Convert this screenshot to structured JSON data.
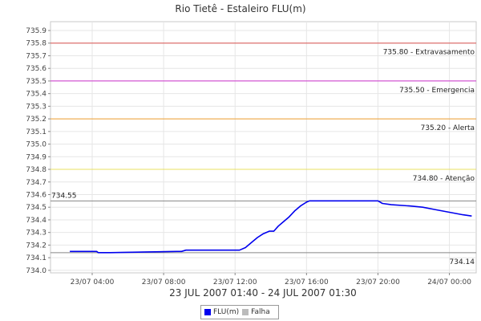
{
  "chart_data": {
    "type": "line",
    "title": "Rio Tietê - Estaleiro FLU(m)",
    "date_range": "23 JUL 2007 01:40 - 24 JUL 2007 01:30",
    "x_domain": [
      "2007-07-23 01:40",
      "2007-07-24 01:30"
    ],
    "ylim": [
      733.98,
      735.97
    ],
    "y_ticks": [
      "734.0",
      "734.1",
      "734.2",
      "734.3",
      "734.4",
      "734.5",
      "734.6",
      "734.7",
      "734.8",
      "734.9",
      "735.0",
      "735.1",
      "735.2",
      "735.3",
      "735.4",
      "735.5",
      "735.6",
      "735.7",
      "735.8",
      "735.9"
    ],
    "x_ticks": [
      {
        "t": "2007-07-23 04:00",
        "label": "23/07 04:00"
      },
      {
        "t": "2007-07-23 08:00",
        "label": "23/07 08:00"
      },
      {
        "t": "2007-07-23 12:00",
        "label": "23/07 12:00"
      },
      {
        "t": "2007-07-23 16:00",
        "label": "23/07 16:00"
      },
      {
        "t": "2007-07-23 20:00",
        "label": "23/07 20:00"
      },
      {
        "t": "2007-07-24 00:00",
        "label": "24/07 00:00"
      }
    ],
    "reference_lines": [
      {
        "value": 735.8,
        "label": "735.80 - Extravasamento",
        "color": "#d9534f"
      },
      {
        "value": 735.5,
        "label": "735.50 - Emergencia",
        "color": "#cc33cc"
      },
      {
        "value": 735.2,
        "label": "735.20 - Alerta",
        "color": "#f0a030"
      },
      {
        "value": 734.8,
        "label": "734.80 - Atenção",
        "color": "#e8e060"
      },
      {
        "value": 734.55,
        "label": "734.55",
        "color": "#888888",
        "label_side": "left"
      },
      {
        "value": 734.14,
        "label": "734.14",
        "color": "#888888",
        "label_side": "right-below"
      }
    ],
    "series": [
      {
        "name": "FLU(m)",
        "color": "#0000ee",
        "points": [
          [
            "2007-07-23 02:45",
            734.15
          ],
          [
            "2007-07-23 04:15",
            734.15
          ],
          [
            "2007-07-23 04:20",
            734.14
          ],
          [
            "2007-07-23 05:00",
            734.14
          ],
          [
            "2007-07-23 08:45",
            734.15
          ],
          [
            "2007-07-23 09:00",
            734.15
          ],
          [
            "2007-07-23 09:15",
            734.16
          ],
          [
            "2007-07-23 12:15",
            734.16
          ],
          [
            "2007-07-23 12:35",
            734.18
          ],
          [
            "2007-07-23 12:55",
            734.22
          ],
          [
            "2007-07-23 13:15",
            734.26
          ],
          [
            "2007-07-23 13:35",
            734.29
          ],
          [
            "2007-07-23 13:55",
            734.31
          ],
          [
            "2007-07-23 14:10",
            734.31
          ],
          [
            "2007-07-23 14:25",
            734.35
          ],
          [
            "2007-07-23 14:40",
            734.38
          ],
          [
            "2007-07-23 15:00",
            734.42
          ],
          [
            "2007-07-23 15:20",
            734.47
          ],
          [
            "2007-07-23 15:40",
            734.51
          ],
          [
            "2007-07-23 16:00",
            734.54
          ],
          [
            "2007-07-23 16:10",
            734.55
          ],
          [
            "2007-07-23 20:00",
            734.55
          ],
          [
            "2007-07-23 20:15",
            734.53
          ],
          [
            "2007-07-23 20:45",
            734.52
          ],
          [
            "2007-07-23 21:45",
            734.51
          ],
          [
            "2007-07-23 22:30",
            734.5
          ],
          [
            "2007-07-23 23:15",
            734.48
          ],
          [
            "2007-07-24 00:00",
            734.46
          ],
          [
            "2007-07-24 00:45",
            734.44
          ],
          [
            "2007-07-24 01:15",
            734.43
          ]
        ]
      },
      {
        "name": "Falha",
        "color": "#bbbbbb",
        "points": [
          [
            "2007-07-23 05:00",
            734.14
          ],
          [
            "2007-07-23 08:45",
            734.15
          ]
        ]
      }
    ],
    "grid": true,
    "legend_position": "bottom-center"
  },
  "legend": {
    "items": [
      {
        "label": "FLU(m)",
        "color": "#0000ee"
      },
      {
        "label": "Falha",
        "color": "#bbbbbb"
      }
    ]
  }
}
